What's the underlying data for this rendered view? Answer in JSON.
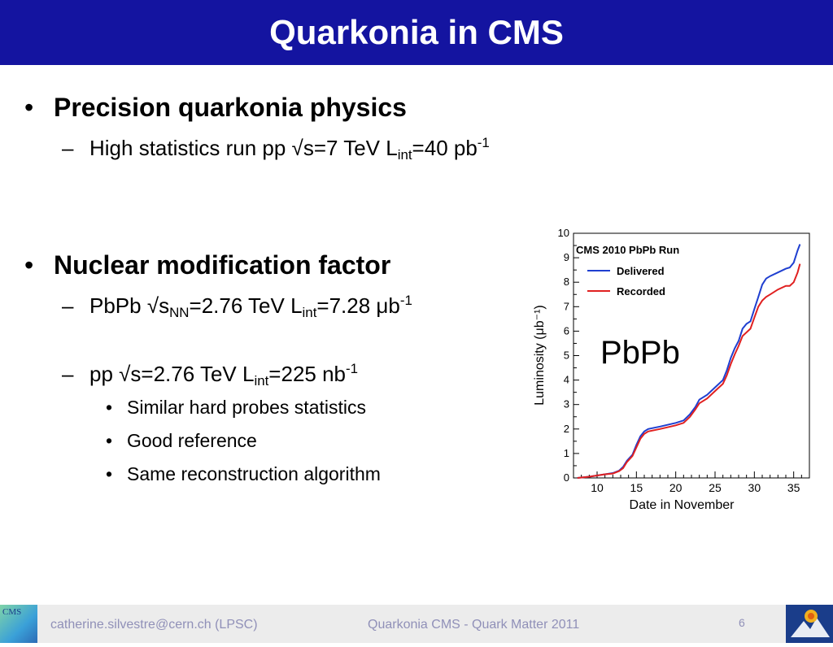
{
  "slide": {
    "title": "Quarkonia in CMS",
    "bullets": [
      {
        "heading": "Precision quarkonia physics",
        "sub": {
          "pre": "High statistics run pp √s=7 TeV L",
          "sub": "int",
          "post": "=40 pb",
          "sup": "-1"
        }
      },
      {
        "heading": "Nuclear modification factor",
        "sub1": {
          "pre": "PbPb √s",
          "sub_a": "NN",
          "mid": "=2.76 TeV L",
          "sub_b": "int",
          "post": "=7.28 μb",
          "sup": "-1"
        },
        "sub2": {
          "pre": "pp √s=2.76 TeV L",
          "sub": "int",
          "post": "=225 nb",
          "sup": "-1"
        },
        "items": [
          "Similar hard probes statistics",
          "Good reference",
          "Same reconstruction algorithm"
        ]
      }
    ],
    "plot_label": "PbPb"
  },
  "footer": {
    "email": "catherine.silvestre@cern.ch (LPSC)",
    "center": "Quarkonia CMS - Quark Matter 2011",
    "page": "6",
    "left_logo_text": "CMS"
  },
  "chart_data": {
    "type": "line",
    "title": "CMS 2010 PbPb Run",
    "xlabel": "Date in November",
    "ylabel": "Luminosity (μb⁻¹)",
    "xlim": [
      7,
      37
    ],
    "ylim": [
      0,
      10
    ],
    "xticks": [
      10,
      15,
      20,
      25,
      30,
      35
    ],
    "yticks": [
      0,
      1,
      2,
      3,
      4,
      5,
      6,
      7,
      8,
      9,
      10
    ],
    "legend_position": "top-left",
    "grid": false,
    "series": [
      {
        "name": "Delivered",
        "color": "#1f3fd0",
        "points": [
          [
            7.5,
            0.0
          ],
          [
            9,
            0.05
          ],
          [
            10,
            0.1
          ],
          [
            11,
            0.15
          ],
          [
            12,
            0.2
          ],
          [
            12.8,
            0.3
          ],
          [
            13.3,
            0.45
          ],
          [
            13.8,
            0.7
          ],
          [
            14.5,
            0.95
          ],
          [
            15,
            1.35
          ],
          [
            15.5,
            1.7
          ],
          [
            16,
            1.9
          ],
          [
            16.5,
            2.0
          ],
          [
            18,
            2.1
          ],
          [
            20,
            2.25
          ],
          [
            21,
            2.35
          ],
          [
            21.8,
            2.6
          ],
          [
            22.5,
            2.9
          ],
          [
            23,
            3.2
          ],
          [
            24,
            3.4
          ],
          [
            25,
            3.7
          ],
          [
            26,
            4.0
          ],
          [
            26.5,
            4.4
          ],
          [
            27,
            4.9
          ],
          [
            27.5,
            5.3
          ],
          [
            28,
            5.6
          ],
          [
            28.5,
            6.1
          ],
          [
            29,
            6.3
          ],
          [
            29.5,
            6.4
          ],
          [
            30,
            6.9
          ],
          [
            30.5,
            7.4
          ],
          [
            31,
            7.9
          ],
          [
            31.5,
            8.15
          ],
          [
            32,
            8.25
          ],
          [
            33,
            8.4
          ],
          [
            34,
            8.55
          ],
          [
            34.5,
            8.6
          ],
          [
            35,
            8.8
          ],
          [
            35.5,
            9.3
          ],
          [
            35.8,
            9.55
          ]
        ]
      },
      {
        "name": "Recorded",
        "color": "#e02020",
        "points": [
          [
            7.5,
            0.0
          ],
          [
            9,
            0.05
          ],
          [
            10,
            0.1
          ],
          [
            11,
            0.15
          ],
          [
            12,
            0.18
          ],
          [
            12.8,
            0.28
          ],
          [
            13.3,
            0.4
          ],
          [
            13.8,
            0.65
          ],
          [
            14.5,
            0.9
          ],
          [
            15,
            1.25
          ],
          [
            15.5,
            1.6
          ],
          [
            16,
            1.8
          ],
          [
            16.5,
            1.9
          ],
          [
            18,
            2.0
          ],
          [
            20,
            2.15
          ],
          [
            21,
            2.25
          ],
          [
            21.8,
            2.5
          ],
          [
            22.5,
            2.8
          ],
          [
            23,
            3.05
          ],
          [
            24,
            3.25
          ],
          [
            25,
            3.55
          ],
          [
            26,
            3.85
          ],
          [
            26.5,
            4.2
          ],
          [
            27,
            4.65
          ],
          [
            27.5,
            5.05
          ],
          [
            28,
            5.4
          ],
          [
            28.5,
            5.8
          ],
          [
            29,
            5.95
          ],
          [
            29.5,
            6.1
          ],
          [
            30,
            6.55
          ],
          [
            30.5,
            7.0
          ],
          [
            31,
            7.25
          ],
          [
            31.5,
            7.4
          ],
          [
            32,
            7.5
          ],
          [
            33,
            7.7
          ],
          [
            34,
            7.85
          ],
          [
            34.5,
            7.85
          ],
          [
            35,
            8.0
          ],
          [
            35.5,
            8.4
          ],
          [
            35.8,
            8.75
          ]
        ]
      }
    ]
  }
}
